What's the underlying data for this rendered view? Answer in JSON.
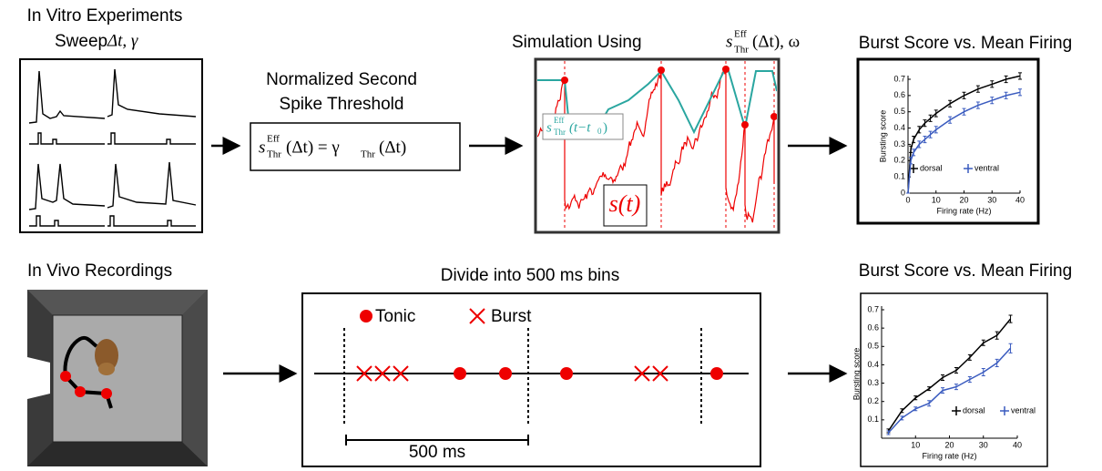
{
  "panels": {
    "in_vitro": {
      "title": "In Vitro Experiments",
      "subtitle": "Sweep",
      "subtitle_math": "Δt,  γ"
    },
    "threshold": {
      "title": [
        "Normalized Second",
        "Spike Threshold"
      ],
      "formula": [
        "s",
        "Eff",
        "Thr",
        "(Δt) = γ",
        "Thr",
        "(Δt)"
      ]
    },
    "simulation": {
      "title": "Simulation Using",
      "title_math": [
        "s",
        "Eff",
        "Thr",
        "(Δt),  ω"
      ],
      "threshold_label": [
        "s",
        "Eff",
        "Thr",
        "(t−t",
        "0",
        ")"
      ],
      "signal_label": "s(t)"
    },
    "in_vivo": {
      "title": "In Vivo Recordings"
    },
    "bins": {
      "title": "Divide into 500 ms bins",
      "legend": [
        "Tonic",
        "Burst"
      ],
      "scale_label": "500 ms"
    }
  },
  "chart_data": [
    {
      "type": "line",
      "title": "Burst Score vs. Mean Firing",
      "xlabel": "Firing rate (Hz)",
      "ylabel": "Bursting score",
      "x": [
        0,
        1,
        2,
        4,
        6,
        8,
        10,
        15,
        20,
        25,
        30,
        35,
        40
      ],
      "xlim": [
        0,
        40
      ],
      "ylim": [
        0,
        0.7
      ],
      "xticks": [
        0,
        10,
        20,
        30,
        40
      ],
      "yticks": [
        0,
        0.1,
        0.2,
        0.3,
        0.4,
        0.5,
        0.6,
        0.7
      ],
      "series": [
        {
          "name": "dorsal",
          "color": "#000000",
          "values": [
            0,
            0.27,
            0.33,
            0.39,
            0.43,
            0.46,
            0.49,
            0.55,
            0.6,
            0.64,
            0.67,
            0.7,
            0.72
          ],
          "errors": [
            0,
            0.02,
            0.02,
            0.02,
            0.02,
            0.02,
            0.02,
            0.02,
            0.02,
            0.02,
            0.02,
            0.02,
            0.02
          ]
        },
        {
          "name": "ventral",
          "color": "#3a5bbf",
          "values": [
            0,
            0.2,
            0.25,
            0.3,
            0.33,
            0.36,
            0.39,
            0.45,
            0.5,
            0.54,
            0.57,
            0.6,
            0.62
          ],
          "errors": [
            0,
            0.02,
            0.02,
            0.02,
            0.02,
            0.02,
            0.02,
            0.02,
            0.02,
            0.02,
            0.02,
            0.02,
            0.02
          ]
        }
      ]
    },
    {
      "type": "line",
      "title": "Burst Score vs. Mean Firing",
      "xlabel": "Firing rate (Hz)",
      "ylabel": "Bursting score",
      "x": [
        2,
        6,
        10,
        14,
        18,
        22,
        26,
        30,
        34,
        38
      ],
      "xlim": [
        0,
        40
      ],
      "ylim": [
        0,
        0.7
      ],
      "xticks": [
        10,
        20,
        30,
        40
      ],
      "yticks": [
        0.1,
        0.2,
        0.3,
        0.4,
        0.5,
        0.6,
        0.7
      ],
      "series": [
        {
          "name": "dorsal",
          "color": "#000000",
          "values": [
            0.04,
            0.15,
            0.22,
            0.27,
            0.33,
            0.37,
            0.44,
            0.52,
            0.56,
            0.65
          ],
          "errors": [
            0.01,
            0.01,
            0.01,
            0.01,
            0.015,
            0.015,
            0.015,
            0.015,
            0.02,
            0.02
          ]
        },
        {
          "name": "ventral",
          "color": "#3a5bbf",
          "values": [
            0.03,
            0.11,
            0.16,
            0.19,
            0.26,
            0.28,
            0.32,
            0.36,
            0.41,
            0.49
          ],
          "errors": [
            0.01,
            0.01,
            0.01,
            0.015,
            0.015,
            0.015,
            0.015,
            0.02,
            0.02,
            0.025
          ]
        }
      ]
    }
  ]
}
